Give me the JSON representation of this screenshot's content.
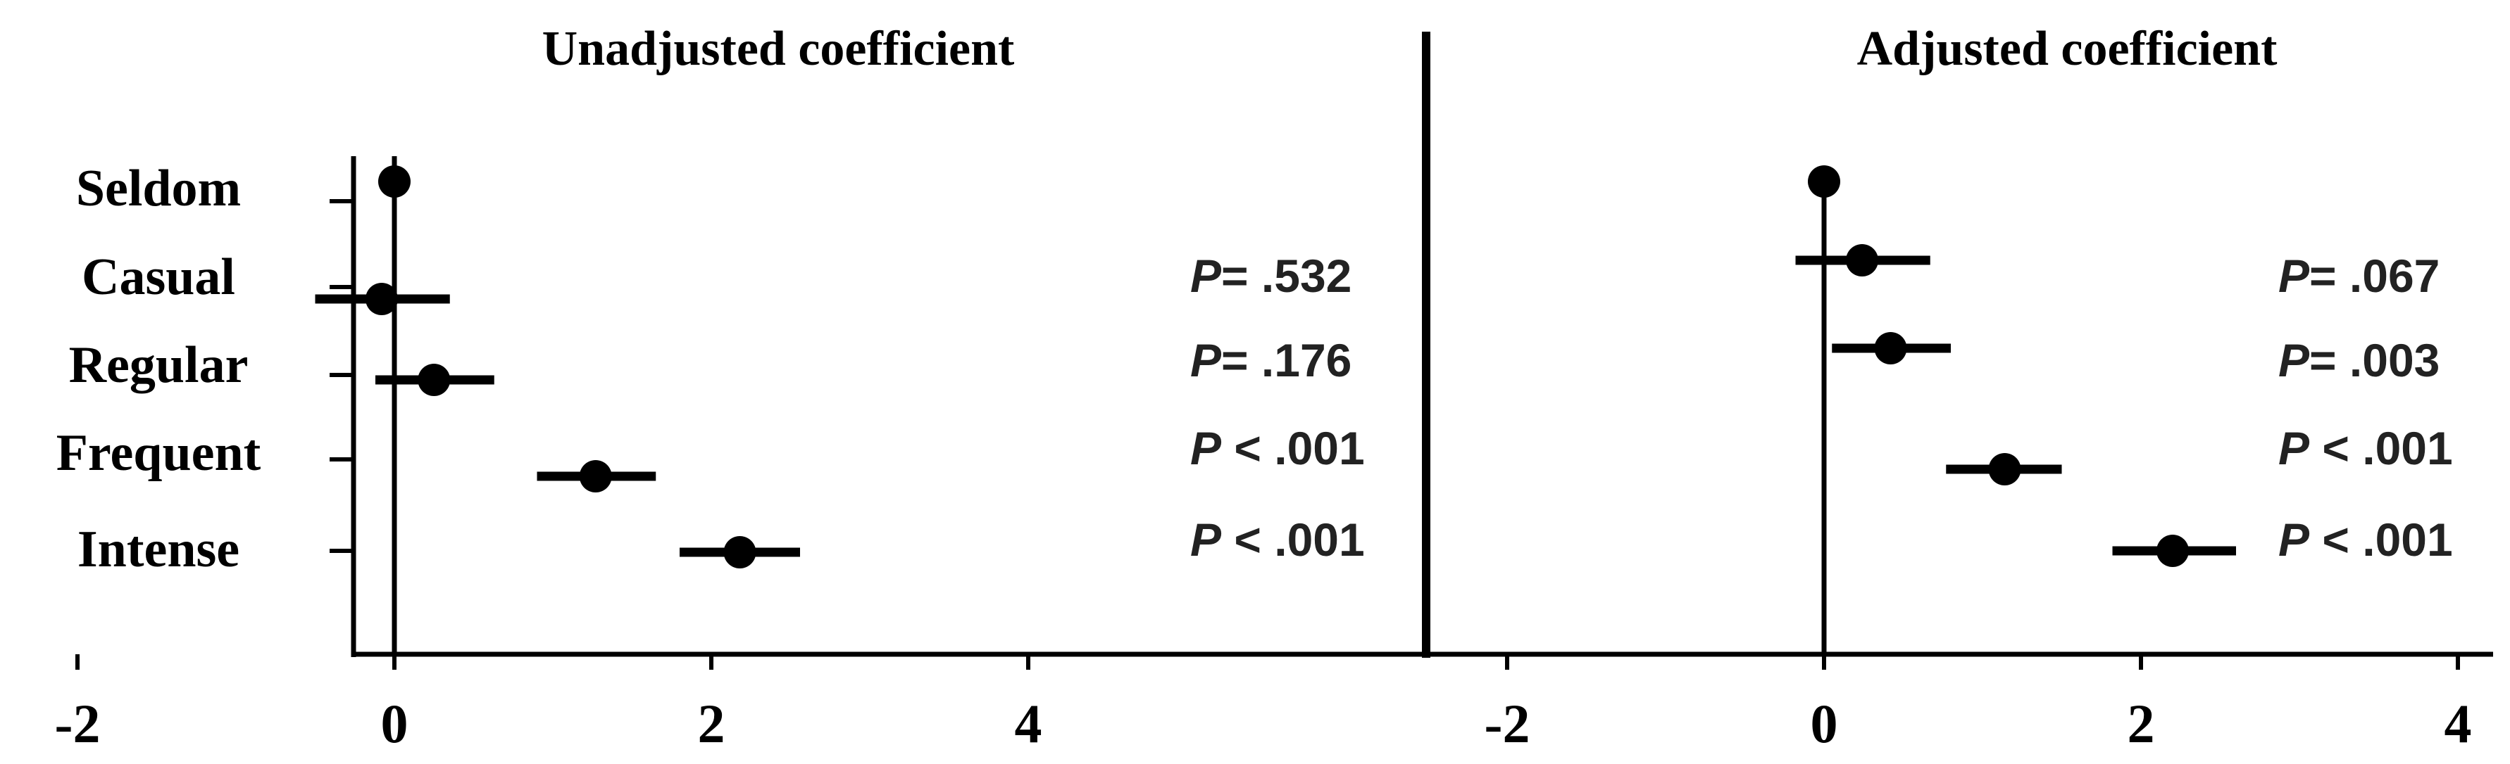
{
  "chart_data": [
    {
      "type": "forest",
      "title": "Unadjusted coefficient",
      "categories": [
        "Seldom",
        "Casual",
        "Regular",
        "Frequent",
        "Intense"
      ],
      "x_ticks": [
        "-2",
        "0",
        "2",
        "4"
      ],
      "xlim": [
        -2,
        4
      ],
      "reference_line": 0,
      "points": [
        {
          "category": "Seldom",
          "estimate": 0.0,
          "ci_low": null,
          "ci_high": null,
          "p_label": ""
        },
        {
          "category": "Casual",
          "estimate": -0.08,
          "ci_low": -0.5,
          "ci_high": 0.35,
          "p_label": "= .532"
        },
        {
          "category": "Regular",
          "estimate": 0.25,
          "ci_low": -0.12,
          "ci_high": 0.63,
          "p_label": "= .176"
        },
        {
          "category": "Frequent",
          "estimate": 1.27,
          "ci_low": 0.9,
          "ci_high": 1.65,
          "p_label": " < .001"
        },
        {
          "category": "Intense",
          "estimate": 2.18,
          "ci_low": 1.8,
          "ci_high": 2.56,
          "p_label": " < .001"
        }
      ]
    },
    {
      "type": "forest",
      "title": "Adjusted coefficient",
      "categories": [
        "Seldom",
        "Casual",
        "Regular",
        "Frequent",
        "Intense"
      ],
      "x_ticks": [
        "-2",
        "0",
        "2",
        "4"
      ],
      "xlim": [
        -2,
        4
      ],
      "reference_line": 0,
      "points": [
        {
          "category": "Seldom",
          "estimate": 0.0,
          "ci_low": null,
          "ci_high": null,
          "p_label": ""
        },
        {
          "category": "Casual",
          "estimate": 0.24,
          "ci_low": -0.18,
          "ci_high": 0.67,
          "p_label": "= .067"
        },
        {
          "category": "Regular",
          "estimate": 0.42,
          "ci_low": 0.05,
          "ci_high": 0.8,
          "p_label": "= .003"
        },
        {
          "category": "Frequent",
          "estimate": 1.14,
          "ci_low": 0.77,
          "ci_high": 1.5,
          "p_label": " < .001"
        },
        {
          "category": "Intense",
          "estimate": 2.2,
          "ci_low": 1.82,
          "ci_high": 2.6,
          "p_label": " < .001"
        }
      ]
    }
  ],
  "p_symbol": "P",
  "colors": {
    "ink": "#000000",
    "background": "#ffffff",
    "p_text": "#222222"
  }
}
